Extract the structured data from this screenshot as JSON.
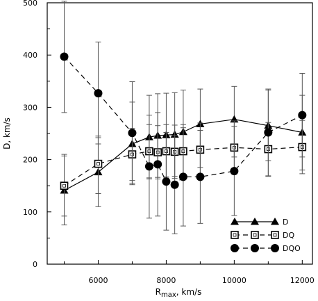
{
  "chart_data": {
    "type": "line",
    "xlabel": "R",
    "xlabel_sub": "max",
    "xlabel_unit": ", km/s",
    "ylabel": "D, km/s",
    "xlim": [
      4500,
      12300
    ],
    "ylim": [
      0,
      500
    ],
    "x_ticks": [
      {
        "value": 6000,
        "label": "6000"
      },
      {
        "value": 8000,
        "label": "8000"
      },
      {
        "value": 10000,
        "label": "10000"
      },
      {
        "value": 12000,
        "label": "12000"
      }
    ],
    "y_ticks": [
      {
        "value": 0,
        "label": "0"
      },
      {
        "value": 100,
        "label": "100"
      },
      {
        "value": 200,
        "label": "200"
      },
      {
        "value": 300,
        "label": "300"
      },
      {
        "value": 400,
        "label": "400"
      },
      {
        "value": 500,
        "label": "500"
      }
    ],
    "legend_position": "bottom-right",
    "series": [
      {
        "name": "D",
        "marker": "filled-triangle",
        "line": "solid",
        "points": [
          {
            "x": 5000,
            "y": 141,
            "lo": 75,
            "hi": 207
          },
          {
            "x": 6000,
            "y": 176,
            "lo": 110,
            "hi": 242
          },
          {
            "x": 7000,
            "y": 230,
            "lo": 152,
            "hi": 310
          },
          {
            "x": 7500,
            "y": 243,
            "lo": 163,
            "hi": 323
          },
          {
            "x": 7750,
            "y": 246,
            "lo": 166,
            "hi": 326
          },
          {
            "x": 8000,
            "y": 247,
            "lo": 167,
            "hi": 327
          },
          {
            "x": 8250,
            "y": 248,
            "lo": 168,
            "hi": 328
          },
          {
            "x": 8500,
            "y": 253,
            "lo": 173,
            "hi": 333
          },
          {
            "x": 9000,
            "y": 268,
            "lo": 185,
            "hi": 335
          },
          {
            "x": 10000,
            "y": 277,
            "lo": 205,
            "hi": 340
          },
          {
            "x": 11000,
            "y": 265,
            "lo": 198,
            "hi": 333
          },
          {
            "x": 12000,
            "y": 252,
            "lo": 180,
            "hi": 323
          }
        ]
      },
      {
        "name": "DQ",
        "marker": "open-square",
        "line": "dashed",
        "points": [
          {
            "x": 5000,
            "y": 150,
            "lo": 92,
            "hi": 210
          },
          {
            "x": 6000,
            "y": 192,
            "lo": 135,
            "hi": 245
          },
          {
            "x": 7000,
            "y": 210,
            "lo": 160,
            "hi": 260
          },
          {
            "x": 7500,
            "y": 216,
            "lo": 165,
            "hi": 267
          },
          {
            "x": 7750,
            "y": 214,
            "lo": 163,
            "hi": 265
          },
          {
            "x": 8000,
            "y": 216,
            "lo": 165,
            "hi": 267
          },
          {
            "x": 8250,
            "y": 215,
            "lo": 164,
            "hi": 266
          },
          {
            "x": 8500,
            "y": 216,
            "lo": 165,
            "hi": 267
          },
          {
            "x": 9000,
            "y": 219,
            "lo": 168,
            "hi": 270
          },
          {
            "x": 10000,
            "y": 223,
            "lo": 172,
            "hi": 274
          },
          {
            "x": 11000,
            "y": 220,
            "lo": 169,
            "hi": 271
          },
          {
            "x": 12000,
            "y": 224,
            "lo": 173,
            "hi": 275
          }
        ]
      },
      {
        "name": "DQO",
        "marker": "filled-circle",
        "line": "dashed",
        "points": [
          {
            "x": 5000,
            "y": 397,
            "lo": 290,
            "hi": 503
          },
          {
            "x": 6000,
            "y": 327,
            "lo": 230,
            "hi": 425
          },
          {
            "x": 7000,
            "y": 251,
            "lo": 155,
            "hi": 349
          },
          {
            "x": 7500,
            "y": 187,
            "lo": 88,
            "hi": 285
          },
          {
            "x": 7750,
            "y": 191,
            "lo": 92,
            "hi": 290
          },
          {
            "x": 8000,
            "y": 158,
            "lo": 65,
            "hi": 252
          },
          {
            "x": 8250,
            "y": 152,
            "lo": 58,
            "hi": 246
          },
          {
            "x": 8500,
            "y": 167,
            "lo": 73,
            "hi": 261
          },
          {
            "x": 9000,
            "y": 167,
            "lo": 78,
            "hi": 256
          },
          {
            "x": 10000,
            "y": 178,
            "lo": 93,
            "hi": 264
          },
          {
            "x": 11000,
            "y": 252,
            "lo": 168,
            "hi": 335
          },
          {
            "x": 12000,
            "y": 285,
            "lo": 205,
            "hi": 365
          }
        ]
      }
    ]
  }
}
